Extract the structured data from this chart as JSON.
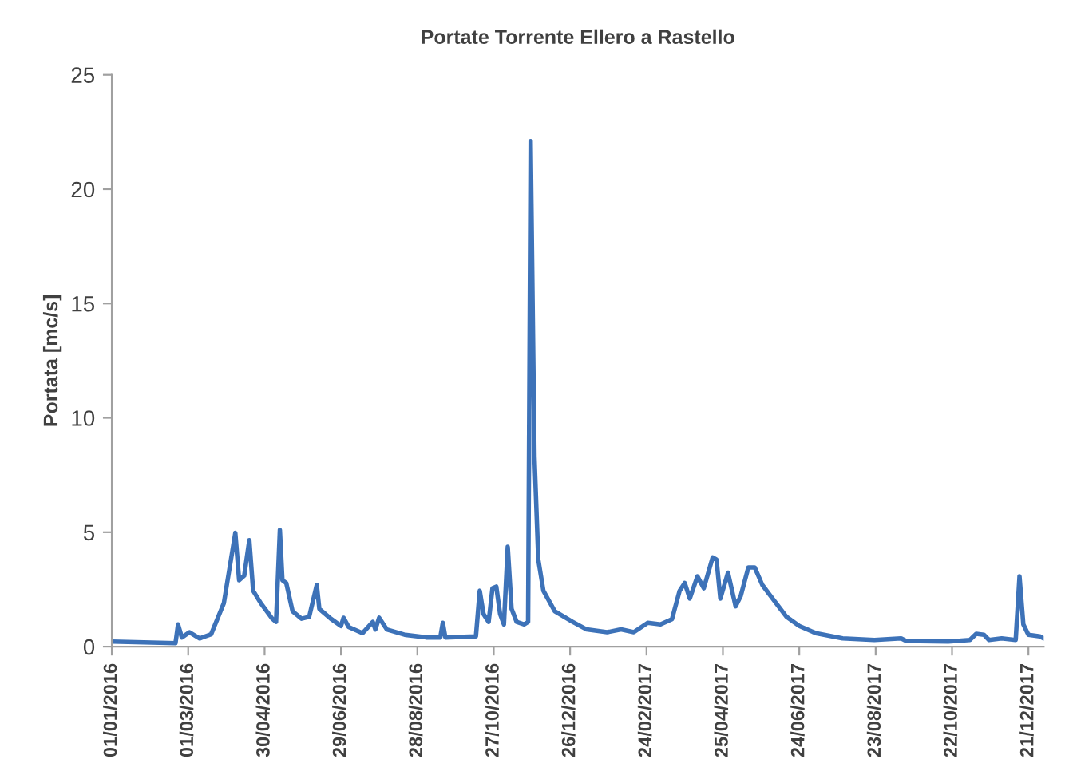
{
  "chart_data": {
    "type": "line",
    "title": "Portate Torrente Ellero a Rastello",
    "ylabel": "Portata [mc/s]",
    "series": [
      {
        "color": "#3d72b8",
        "x": [
          "2016-01-01",
          "2016-02-20",
          "2016-02-22",
          "2016-02-25",
          "2016-03-02",
          "2016-03-10",
          "2016-03-19",
          "2016-03-29",
          "2016-04-07",
          "2016-04-10",
          "2016-04-14",
          "2016-04-18",
          "2016-04-21",
          "2016-04-27",
          "2016-05-06",
          "2016-05-09",
          "2016-05-12",
          "2016-05-14",
          "2016-05-17",
          "2016-05-22",
          "2016-05-29",
          "2016-06-04",
          "2016-06-10",
          "2016-06-12",
          "2016-06-21",
          "2016-06-29",
          "2016-07-01",
          "2016-07-05",
          "2016-07-16",
          "2016-07-24",
          "2016-07-26",
          "2016-07-29",
          "2016-08-04",
          "2016-08-18",
          "2016-09-04",
          "2016-09-15",
          "2016-09-17",
          "2016-09-19",
          "2016-10-13",
          "2016-10-16",
          "2016-10-19",
          "2016-10-23",
          "2016-10-26",
          "2016-10-29",
          "2016-11-01",
          "2016-11-04",
          "2016-11-07",
          "2016-11-10",
          "2016-11-14",
          "2016-11-20",
          "2016-11-23",
          "2016-11-25",
          "2016-11-28",
          "2016-12-01",
          "2016-12-05",
          "2016-12-14",
          "2016-12-28",
          "2017-01-08",
          "2017-01-24",
          "2017-02-04",
          "2017-02-14",
          "2017-02-25",
          "2017-03-07",
          "2017-03-16",
          "2017-03-22",
          "2017-03-26",
          "2017-03-30",
          "2017-04-05",
          "2017-04-10",
          "2017-04-17",
          "2017-04-20",
          "2017-04-23",
          "2017-04-29",
          "2017-05-05",
          "2017-05-09",
          "2017-05-15",
          "2017-05-20",
          "2017-05-26",
          "2017-06-03",
          "2017-06-14",
          "2017-06-24",
          "2017-07-07",
          "2017-07-28",
          "2017-08-22",
          "2017-09-12",
          "2017-09-16",
          "2017-10-19",
          "2017-11-05",
          "2017-11-10",
          "2017-11-16",
          "2017-11-20",
          "2017-11-30",
          "2017-12-11",
          "2017-12-14",
          "2017-12-17",
          "2017-12-21",
          "2017-12-30",
          "2018-01-02"
        ],
        "values": [
          0.22,
          0.15,
          0.97,
          0.4,
          0.63,
          0.36,
          0.54,
          1.9,
          4.97,
          2.9,
          3.1,
          4.65,
          2.44,
          1.9,
          1.22,
          1.08,
          5.1,
          2.9,
          2.78,
          1.54,
          1.22,
          1.3,
          2.69,
          1.65,
          1.22,
          0.9,
          1.26,
          0.86,
          0.59,
          1.08,
          0.75,
          1.26,
          0.75,
          0.52,
          0.4,
          0.4,
          1.04,
          0.4,
          0.45,
          2.44,
          1.42,
          1.08,
          2.55,
          2.62,
          1.42,
          0.97,
          4.36,
          1.65,
          1.08,
          0.97,
          1.08,
          22.1,
          8.3,
          3.8,
          2.44,
          1.54,
          1.08,
          0.75,
          0.63,
          0.75,
          0.63,
          1.04,
          0.97,
          1.2,
          2.44,
          2.78,
          2.1,
          3.07,
          2.55,
          3.9,
          3.8,
          2.1,
          3.23,
          1.76,
          2.21,
          3.46,
          3.46,
          2.69,
          2.1,
          1.3,
          0.9,
          0.59,
          0.36,
          0.29,
          0.36,
          0.25,
          0.22,
          0.29,
          0.56,
          0.52,
          0.29,
          0.36,
          0.29,
          3.07,
          0.97,
          0.52,
          0.45,
          0.36
        ]
      }
    ],
    "xlim": [
      "2016-01-01",
      "2018-01-02"
    ],
    "xticks": [
      {
        "value": "2016-01-01",
        "label": "01/01/2016"
      },
      {
        "value": "2016-03-01",
        "label": "01/03/2016"
      },
      {
        "value": "2016-04-30",
        "label": "30/04/2016"
      },
      {
        "value": "2016-06-29",
        "label": "29/06/2016"
      },
      {
        "value": "2016-08-28",
        "label": "28/08/2016"
      },
      {
        "value": "2016-10-27",
        "label": "27/10/2016"
      },
      {
        "value": "2016-12-26",
        "label": "26/12/2016"
      },
      {
        "value": "2017-02-24",
        "label": "24/02/2017"
      },
      {
        "value": "2017-04-25",
        "label": "25/04/2017"
      },
      {
        "value": "2017-06-24",
        "label": "24/06/2017"
      },
      {
        "value": "2017-08-23",
        "label": "23/08/2017"
      },
      {
        "value": "2017-10-22",
        "label": "22/10/2017"
      },
      {
        "value": "2017-12-21",
        "label": "21/12/2017"
      }
    ],
    "ylim": [
      0,
      25
    ],
    "yticks": [
      0,
      5,
      10,
      15,
      20,
      25
    ],
    "grid": false,
    "marker": "none",
    "line_style": "solid"
  }
}
